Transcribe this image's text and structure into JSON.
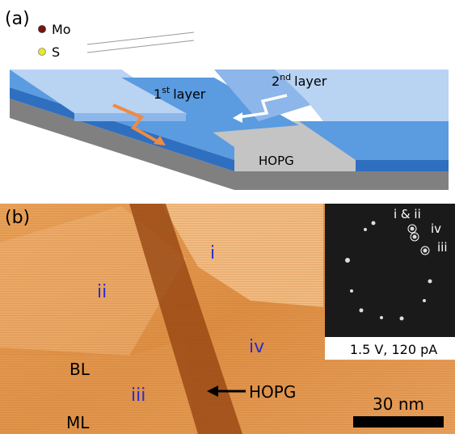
{
  "panel_a": {
    "label": "(a)",
    "legend": [
      {
        "label": "Mo"
      },
      {
        "label": "S"
      }
    ],
    "first_layer": {
      "number": "1",
      "suffix": "st",
      "word": "layer"
    },
    "second_layer": {
      "number": "2",
      "suffix": "nd",
      "word": "layer"
    },
    "substrate": "HOPG"
  },
  "panel_b": {
    "label": "(b)",
    "regions": [
      "i",
      "ii",
      "iii",
      "iv"
    ],
    "layer_labels": [
      "BL",
      "ML"
    ],
    "arrow_label": "HOPG",
    "scale_bar": "30 nm",
    "inset": {
      "spot_labels": [
        "i & ii",
        "iv",
        "iii"
      ],
      "conditions": "1.5 V, 120 pA"
    }
  }
}
